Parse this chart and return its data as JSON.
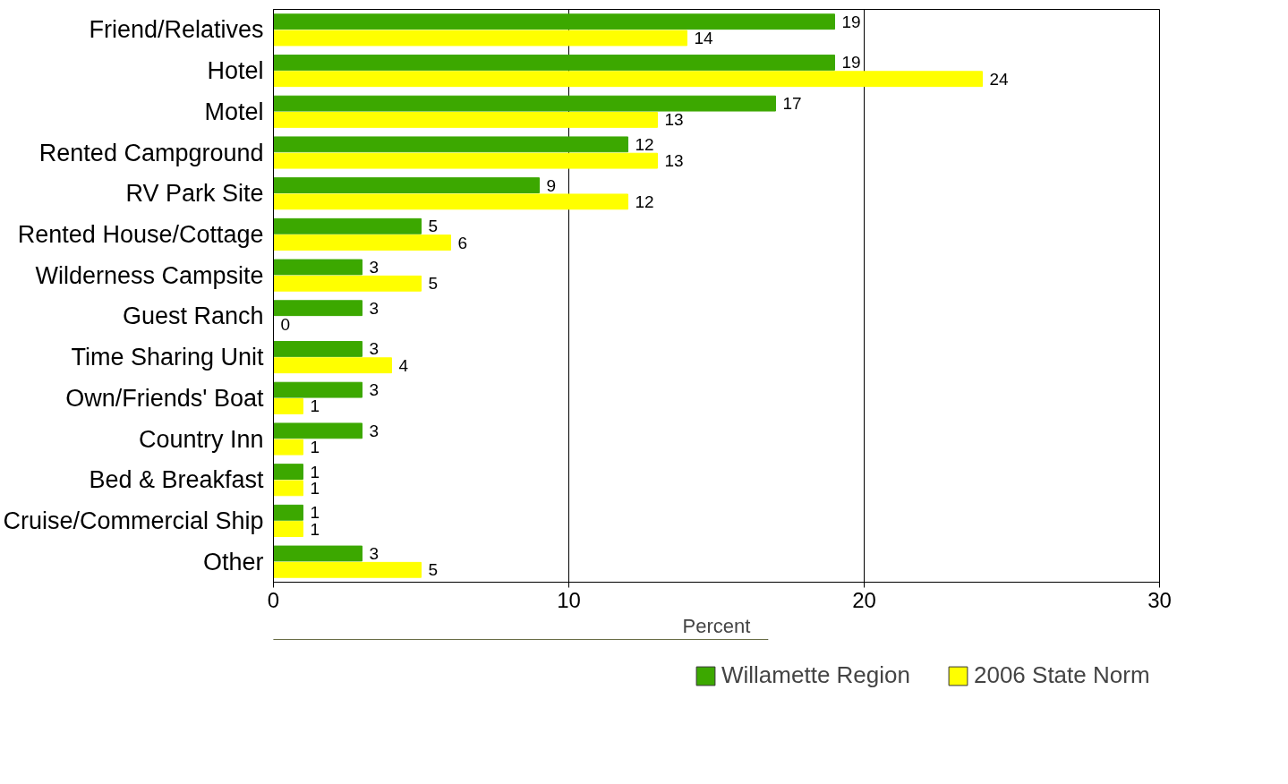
{
  "chart_data": {
    "type": "bar",
    "orientation": "horizontal",
    "xlabel": "Percent",
    "categories": [
      "Friend/Relatives",
      "Hotel",
      "Motel",
      "Rented Campground",
      "RV Park Site",
      "Rented House/Cottage",
      "Wilderness Campsite",
      "Guest Ranch",
      "Time Sharing Unit",
      "Own/Friends' Boat",
      "Country Inn",
      "Bed & Breakfast",
      "Cruise/Commercial Ship",
      "Other"
    ],
    "series": [
      {
        "name": "Willamette Region",
        "color": "#3ca800",
        "values": [
          19,
          19,
          17,
          12,
          9,
          5,
          3,
          3,
          3,
          3,
          3,
          1,
          1,
          3
        ]
      },
      {
        "name": "2006 State Norm",
        "color": "#ffff00",
        "values": [
          14,
          24,
          13,
          13,
          12,
          6,
          5,
          0,
          4,
          1,
          1,
          1,
          1,
          5
        ]
      }
    ],
    "xlim": [
      0,
      30
    ],
    "xticks": [
      0,
      10,
      20,
      30
    ],
    "grid": "x",
    "legend": "bottom",
    "data_labels": true
  }
}
